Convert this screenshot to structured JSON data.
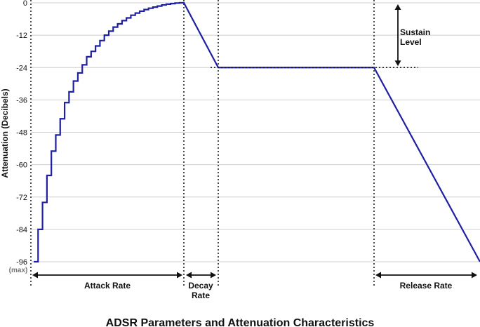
{
  "chart_data": {
    "type": "line",
    "title": "ADSR Parameters and Attenuation Characteristics",
    "ylabel": "Attenuation (Decibels)",
    "xlabel": "",
    "ylim": [
      -96,
      0
    ],
    "y_ticks": [
      "0",
      "-12",
      "-24",
      "-36",
      "-48",
      "-60",
      "-72",
      "-84",
      "-96"
    ],
    "y_tick_values": [
      0,
      -12,
      -24,
      -36,
      -48,
      -60,
      -72,
      -84,
      -96
    ],
    "max_label": "(max)",
    "grid": true,
    "annotations": {
      "sustain_level": [
        "Sustain",
        "Level"
      ],
      "attack_rate": "Attack Rate",
      "decay_rate": [
        "Decay",
        "Rate"
      ],
      "release_rate": "Release Rate"
    },
    "sustain_level_db": -24,
    "series": [
      {
        "color": "#1f1fa3",
        "attack_steps_db": [
          -96,
          -84,
          -74,
          -64,
          -55,
          -49,
          -43,
          -37,
          -33,
          -29,
          -26,
          -23,
          -20,
          -18,
          -16,
          -14,
          -12,
          -10.5,
          -9,
          -7.8,
          -6.6,
          -5.6,
          -4.6,
          -3.8,
          -3.1,
          -2.5,
          -2,
          -1.6,
          -1.2,
          -0.8,
          -0.5,
          -0.3,
          -0.1,
          0
        ],
        "decay_to_db": -24,
        "release_to_db": -96
      }
    ]
  }
}
